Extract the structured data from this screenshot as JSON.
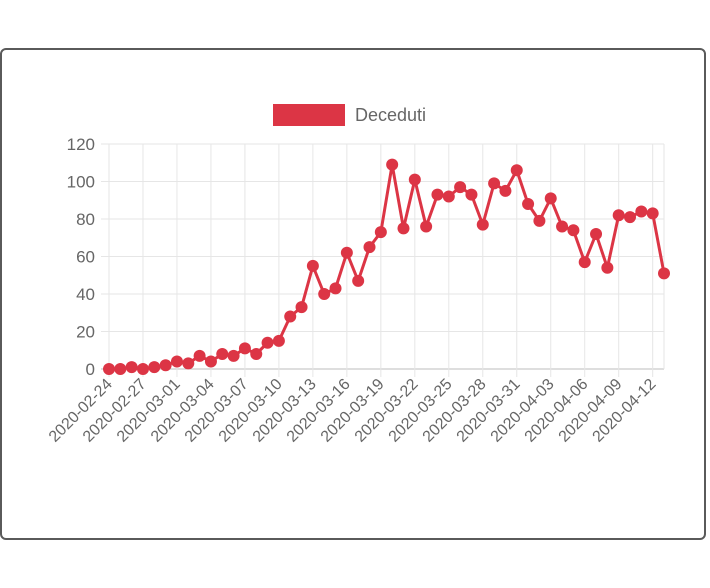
{
  "colors": {
    "series": "#dc3545",
    "grid": "#e6e6e6",
    "text": "#666666"
  },
  "chart_data": {
    "type": "line",
    "legend": {
      "placement": "top",
      "label": "Deceduti"
    },
    "ylim": [
      0,
      120
    ],
    "y_ticks": [
      0,
      20,
      40,
      60,
      80,
      100,
      120
    ],
    "x_tick_labels": [
      "2020-02-24",
      "2020-02-27",
      "2020-03-01",
      "2020-03-04",
      "2020-03-07",
      "2020-03-10",
      "2020-03-13",
      "2020-03-16",
      "2020-03-19",
      "2020-03-22",
      "2020-03-25",
      "2020-03-28",
      "2020-03-31",
      "2020-04-03",
      "2020-04-06",
      "2020-04-09",
      "2020-04-12"
    ],
    "grid": true,
    "series": [
      {
        "name": "Deceduti",
        "x": [
          "2020-02-24",
          "2020-02-25",
          "2020-02-26",
          "2020-02-27",
          "2020-02-28",
          "2020-02-29",
          "2020-03-01",
          "2020-03-02",
          "2020-03-03",
          "2020-03-04",
          "2020-03-05",
          "2020-03-06",
          "2020-03-07",
          "2020-03-08",
          "2020-03-09",
          "2020-03-10",
          "2020-03-11",
          "2020-03-12",
          "2020-03-13",
          "2020-03-14",
          "2020-03-15",
          "2020-03-16",
          "2020-03-17",
          "2020-03-18",
          "2020-03-19",
          "2020-03-20",
          "2020-03-21",
          "2020-03-22",
          "2020-03-23",
          "2020-03-24",
          "2020-03-25",
          "2020-03-26",
          "2020-03-27",
          "2020-03-28",
          "2020-03-29",
          "2020-03-30",
          "2020-03-31",
          "2020-04-01",
          "2020-04-02",
          "2020-04-03",
          "2020-04-04",
          "2020-04-05",
          "2020-04-06",
          "2020-04-07",
          "2020-04-08",
          "2020-04-09",
          "2020-04-10",
          "2020-04-11",
          "2020-04-12",
          "2020-04-13"
        ],
        "values": [
          0,
          0,
          1,
          0,
          1,
          2,
          4,
          3,
          7,
          4,
          8,
          7,
          11,
          8,
          14,
          15,
          28,
          33,
          55,
          40,
          43,
          62,
          47,
          65,
          73,
          109,
          75,
          101,
          76,
          93,
          92,
          97,
          93,
          77,
          99,
          95,
          106,
          88,
          79,
          91,
          76,
          74,
          57,
          72,
          54,
          82,
          81,
          84,
          83,
          51
        ]
      }
    ]
  }
}
